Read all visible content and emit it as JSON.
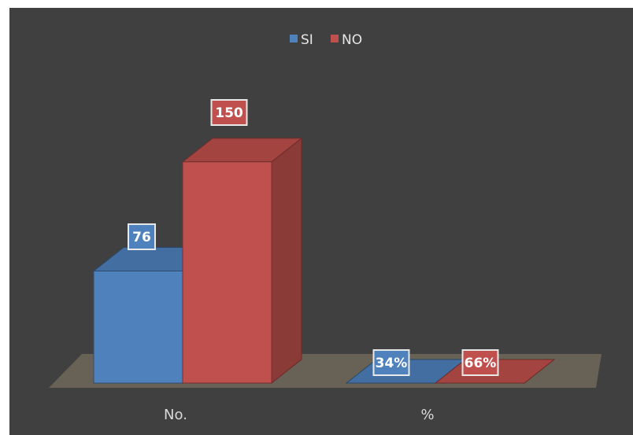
{
  "chart_data": {
    "type": "bar",
    "categories": [
      "No.",
      "%"
    ],
    "series": [
      {
        "name": "SI",
        "values": [
          76,
          0.34
        ],
        "labels": [
          "76",
          "34%"
        ],
        "color": "#4F81BD"
      },
      {
        "name": "NO",
        "values": [
          150,
          0.66
        ],
        "labels": [
          "150",
          "66%"
        ],
        "color": "#C0504D"
      }
    ],
    "title": "",
    "xlabel": "",
    "ylabel": "",
    "ylim": [
      0,
      160
    ],
    "grid": false,
    "legend_position": "top",
    "style": "3d-clustered-column",
    "background_color": "#404040",
    "floor_color": "#6b6658"
  }
}
